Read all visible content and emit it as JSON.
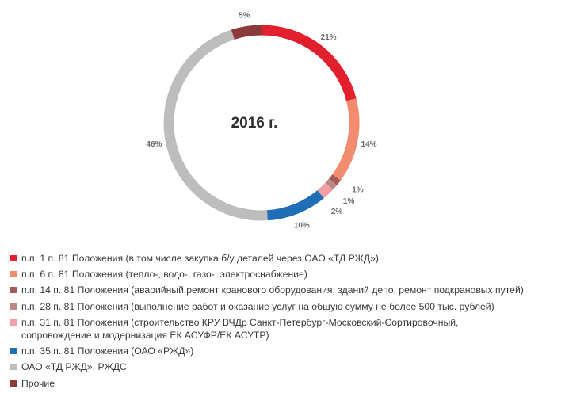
{
  "chart_data": {
    "type": "pie",
    "style": "donut",
    "title": "2016 г.",
    "slices": [
      {
        "name": "п.п. 1 п. 81 Положения (в том числе закупка б/у деталей через ОАО «ТД РЖД»)",
        "value": 21,
        "label": "21%",
        "color": "#e31e2d"
      },
      {
        "name": "п.п. 6 п. 81 Положения (тепло-, водо-, газо-, электроснабжение)",
        "value": 14,
        "label": "14%",
        "color": "#f28c6e"
      },
      {
        "name": "п.п. 14 п. 81 Положения (аварийный ремонт кранового оборудования, зданий депо, ремонт подкрановых путей)",
        "value": 1,
        "label": "1%",
        "color": "#a55a5a"
      },
      {
        "name": "п.п. 28 п. 81 Положения (выполнение работ и оказание услуг на общую сумму не более 500 тыс. рублей)",
        "value": 1,
        "label": "1%",
        "color": "#b98a84"
      },
      {
        "name": "п.п. 31 п. 81 Положения (строительство КРУ ВЧДр Санкт-Петербург-Московский-Сортировочный, сопровождение и модернизация ЕК АСУФР/ЕК АСУТР)",
        "value": 2,
        "label": "2%",
        "color": "#f2a0a3"
      },
      {
        "name": "п.п. 35 п. 81 Положения (ОАО «РЖД»)",
        "value": 10,
        "label": "10%",
        "color": "#1f6fb6"
      },
      {
        "name": "ОАО «ТД РЖД», РЖДС",
        "value": 46,
        "label": "46%",
        "color": "#bdbdbe"
      },
      {
        "name": "Прочие",
        "value": 5,
        "label": "5%",
        "color": "#8b3a3a"
      }
    ],
    "legend_position": "bottom-left"
  }
}
